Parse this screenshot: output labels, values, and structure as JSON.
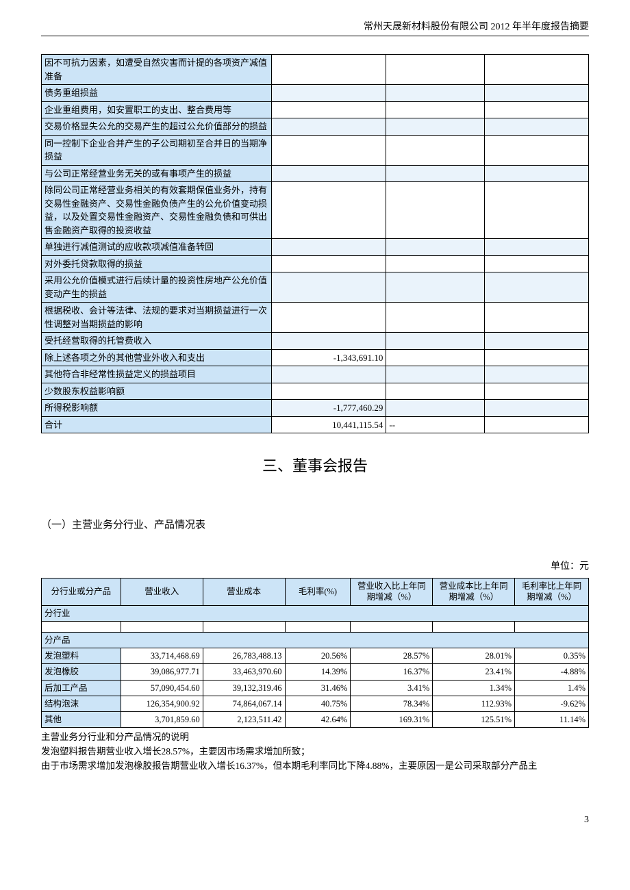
{
  "header": "常州天晟新材料股份有限公司 2012 年半年度报告摘要",
  "table1_rows": [
    {
      "label": "因不可抗力因素，如遭受自然灾害而计提的各项资产减值准备",
      "v1": "",
      "v2": "",
      "v3": ""
    },
    {
      "label": "债务重组损益",
      "v1": "",
      "v2": "",
      "v3": ""
    },
    {
      "label": "企业重组费用，如安置职工的支出、整合费用等",
      "v1": "",
      "v2": "",
      "v3": ""
    },
    {
      "label": "交易价格显失公允的交易产生的超过公允价值部分的损益",
      "v1": "",
      "v2": "",
      "v3": ""
    },
    {
      "label": "同一控制下企业合并产生的子公司期初至合并日的当期净损益",
      "v1": "",
      "v2": "",
      "v3": ""
    },
    {
      "label": "与公司正常经营业务无关的或有事项产生的损益",
      "v1": "",
      "v2": "",
      "v3": ""
    },
    {
      "label": "除同公司正常经营业务相关的有效套期保值业务外，持有交易性金融资产、交易性金融负债产生的公允价值变动损益，以及处置交易性金融资产、交易性金融负债和可供出售金融资产取得的投资收益",
      "v1": "",
      "v2": "",
      "v3": ""
    },
    {
      "label": "单独进行减值测试的应收款项减值准备转回",
      "v1": "",
      "v2": "",
      "v3": ""
    },
    {
      "label": "对外委托贷款取得的损益",
      "v1": "",
      "v2": "",
      "v3": ""
    },
    {
      "label": "采用公允价值模式进行后续计量的投资性房地产公允价值变动产生的损益",
      "v1": "",
      "v2": "",
      "v3": ""
    },
    {
      "label": "根据税收、会计等法律、法规的要求对当期损益进行一次性调整对当期损益的影响",
      "v1": "",
      "v2": "",
      "v3": ""
    },
    {
      "label": "受托经营取得的托管费收入",
      "v1": "",
      "v2": "",
      "v3": ""
    },
    {
      "label": "除上述各项之外的其他营业外收入和支出",
      "v1": "-1,343,691.10",
      "v2": "",
      "v3": ""
    },
    {
      "label": "其他符合非经常性损益定义的损益项目",
      "v1": "",
      "v2": "",
      "v3": ""
    },
    {
      "label": "少数股东权益影响额",
      "v1": "",
      "v2": "",
      "v3": ""
    },
    {
      "label": "所得税影响额",
      "v1": "-1,777,460.29",
      "v2": "",
      "v3": ""
    },
    {
      "label": "合计",
      "v1": "10,441,115.54",
      "v2": "--",
      "v3": ""
    }
  ],
  "section_title": "三、董事会报告",
  "subsection": "（一）主营业务分行业、产品情况表",
  "unit": "单位：元",
  "table2": {
    "headers": [
      "分行业或分产品",
      "营业收入",
      "营业成本",
      "毛利率(%)",
      "营业收入比上年同期增减（%）",
      "营业成本比上年同期增减（%）",
      "毛利率比上年同期增减（%）"
    ],
    "cat1": "分行业",
    "cat2": "分产品",
    "rows": [
      {
        "name": "发泡塑料",
        "c1": "33,714,468.69",
        "c2": "26,783,488.13",
        "c3": "20.56%",
        "c4": "28.57%",
        "c5": "28.01%",
        "c6": "0.35%"
      },
      {
        "name": "发泡橡胶",
        "c1": "39,086,977.71",
        "c2": "33,463,970.60",
        "c3": "14.39%",
        "c4": "16.37%",
        "c5": "23.41%",
        "c6": "-4.88%"
      },
      {
        "name": "后加工产品",
        "c1": "57,090,454.60",
        "c2": "39,132,319.46",
        "c3": "31.46%",
        "c4": "3.41%",
        "c5": "1.34%",
        "c6": "1.4%"
      },
      {
        "name": "结构泡沫",
        "c1": "126,354,900.92",
        "c2": "74,864,067.14",
        "c3": "40.75%",
        "c4": "78.34%",
        "c5": "112.93%",
        "c6": "-9.62%"
      },
      {
        "name": "其他",
        "c1": "3,701,859.60",
        "c2": "2,123,511.42",
        "c3": "42.64%",
        "c4": "169.31%",
        "c5": "125.51%",
        "c6": "11.14%"
      }
    ]
  },
  "notes": [
    "主营业务分行业和分产品情况的说明",
    "发泡塑料报告期营业收入增长28.57%，主要因市场需求增加所致；",
    "由于市场需求增加发泡橡胶报告期营业收入增长16.37%，但本期毛利率同比下降4.88%，主要原因一是公司采取部分产品主"
  ],
  "page_number": "3"
}
